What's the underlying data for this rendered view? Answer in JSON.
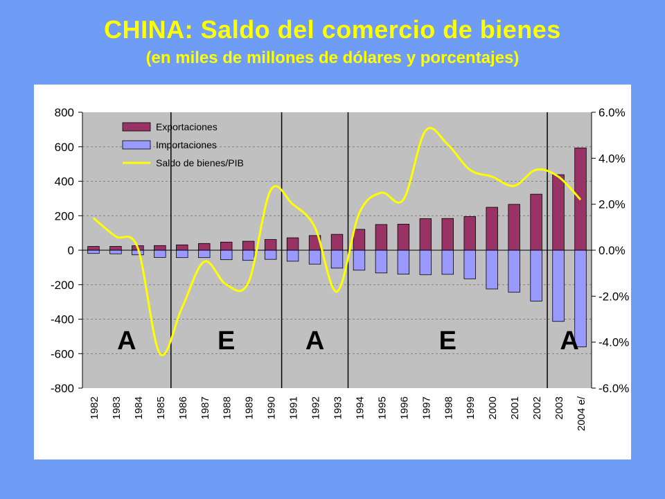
{
  "slide": {
    "title": "CHINA:  Saldo del comercio de bienes",
    "subtitle": "(en miles de millones de dólares y porcentajes)"
  },
  "chart_data": {
    "type": "bar",
    "categories": [
      "1982",
      "1983",
      "1984",
      "1985",
      "1986",
      "1987",
      "1988",
      "1989",
      "1990",
      "1991",
      "1992",
      "1993",
      "1994",
      "1995",
      "1996",
      "1997",
      "1998",
      "1999",
      "2000",
      "2001",
      "2002",
      "2003",
      "2004 e/"
    ],
    "series": [
      {
        "name": "Exportaciones",
        "type": "bar",
        "axis": "left",
        "color": "#993366",
        "values": [
          22,
          22,
          26,
          27,
          31,
          39,
          47,
          52,
          62,
          72,
          85,
          92,
          121,
          149,
          151,
          183,
          184,
          195,
          249,
          266,
          325,
          438,
          593
        ]
      },
      {
        "name": "Importaciones",
        "type": "bar",
        "axis": "left",
        "color": "#9999ff",
        "values": [
          -19,
          -21,
          -27,
          -42,
          -43,
          -43,
          -55,
          -59,
          -53,
          -64,
          -81,
          -104,
          -116,
          -132,
          -139,
          -142,
          -140,
          -166,
          -225,
          -244,
          -295,
          -413,
          -561
        ]
      },
      {
        "name": "Saldo de bienes/PIB",
        "type": "line",
        "axis": "right",
        "color": "#ffff00",
        "values": [
          1.4,
          0.6,
          0.1,
          -4.5,
          -2.5,
          -0.5,
          -1.5,
          -1.4,
          2.6,
          2.0,
          1.0,
          -1.8,
          1.6,
          2.5,
          2.2,
          5.2,
          4.6,
          3.5,
          3.2,
          2.8,
          3.5,
          3.2,
          2.2
        ]
      }
    ],
    "y_left": {
      "min": -800,
      "max": 800,
      "ticks": [
        "800",
        "600",
        "400",
        "200",
        "0",
        "-200",
        "-400",
        "-600",
        "-800"
      ]
    },
    "y_right": {
      "min": -6,
      "max": 6,
      "ticks": [
        "6.0%",
        "4.0%",
        "2.0%",
        "0.0%",
        "-2.0%",
        "-4.0%",
        "-6.0%"
      ]
    },
    "grid": "horizontal dashed",
    "legend_position": "top-left",
    "period_dividers_after": [
      "1985",
      "1990",
      "1993",
      "2002"
    ],
    "period_labels": [
      "A",
      "E",
      "A",
      "E",
      "A"
    ]
  }
}
